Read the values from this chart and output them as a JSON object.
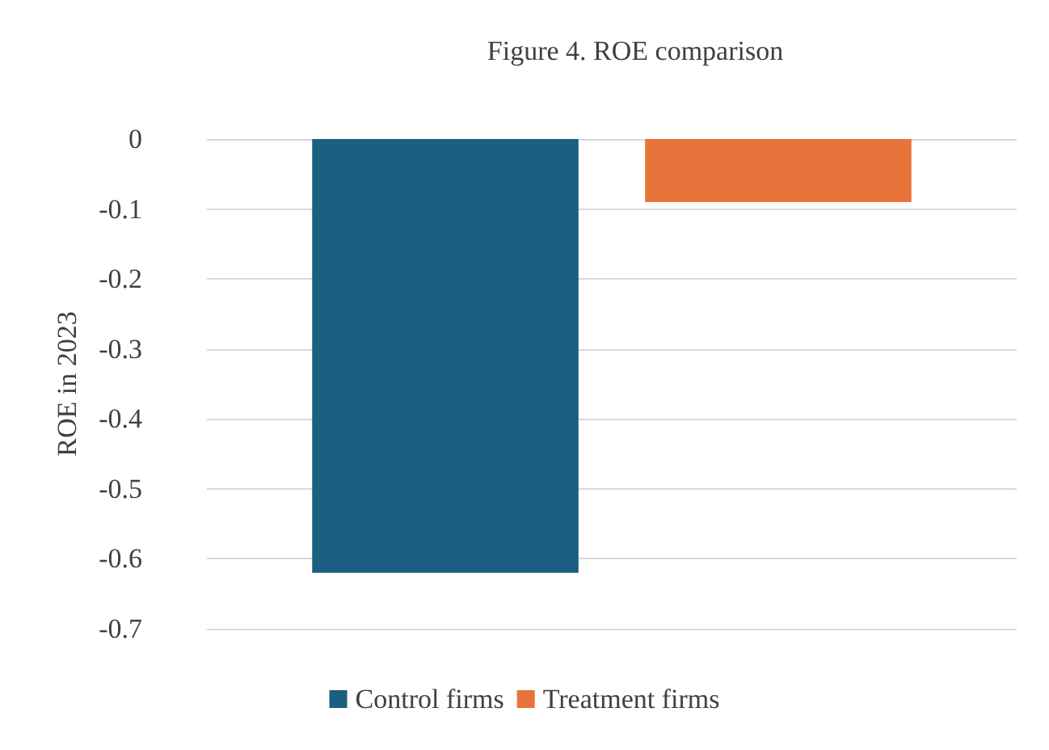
{
  "chart_data": {
    "type": "bar",
    "title": "Figure 4. ROE comparison",
    "ylabel": "ROE in 2023",
    "categories": [
      null
    ],
    "series": [
      {
        "name": "Control firms",
        "color": "#1a5e80",
        "values": [
          -0.62
        ]
      },
      {
        "name": "Treatment firms",
        "color": "#e8743b",
        "values": [
          -0.09
        ]
      }
    ],
    "ylim": [
      -0.7,
      0
    ],
    "yticks": [
      0,
      -0.1,
      -0.2,
      -0.3,
      -0.4,
      -0.5,
      -0.6,
      -0.7
    ],
    "grid": "y",
    "legend": "bottom"
  }
}
